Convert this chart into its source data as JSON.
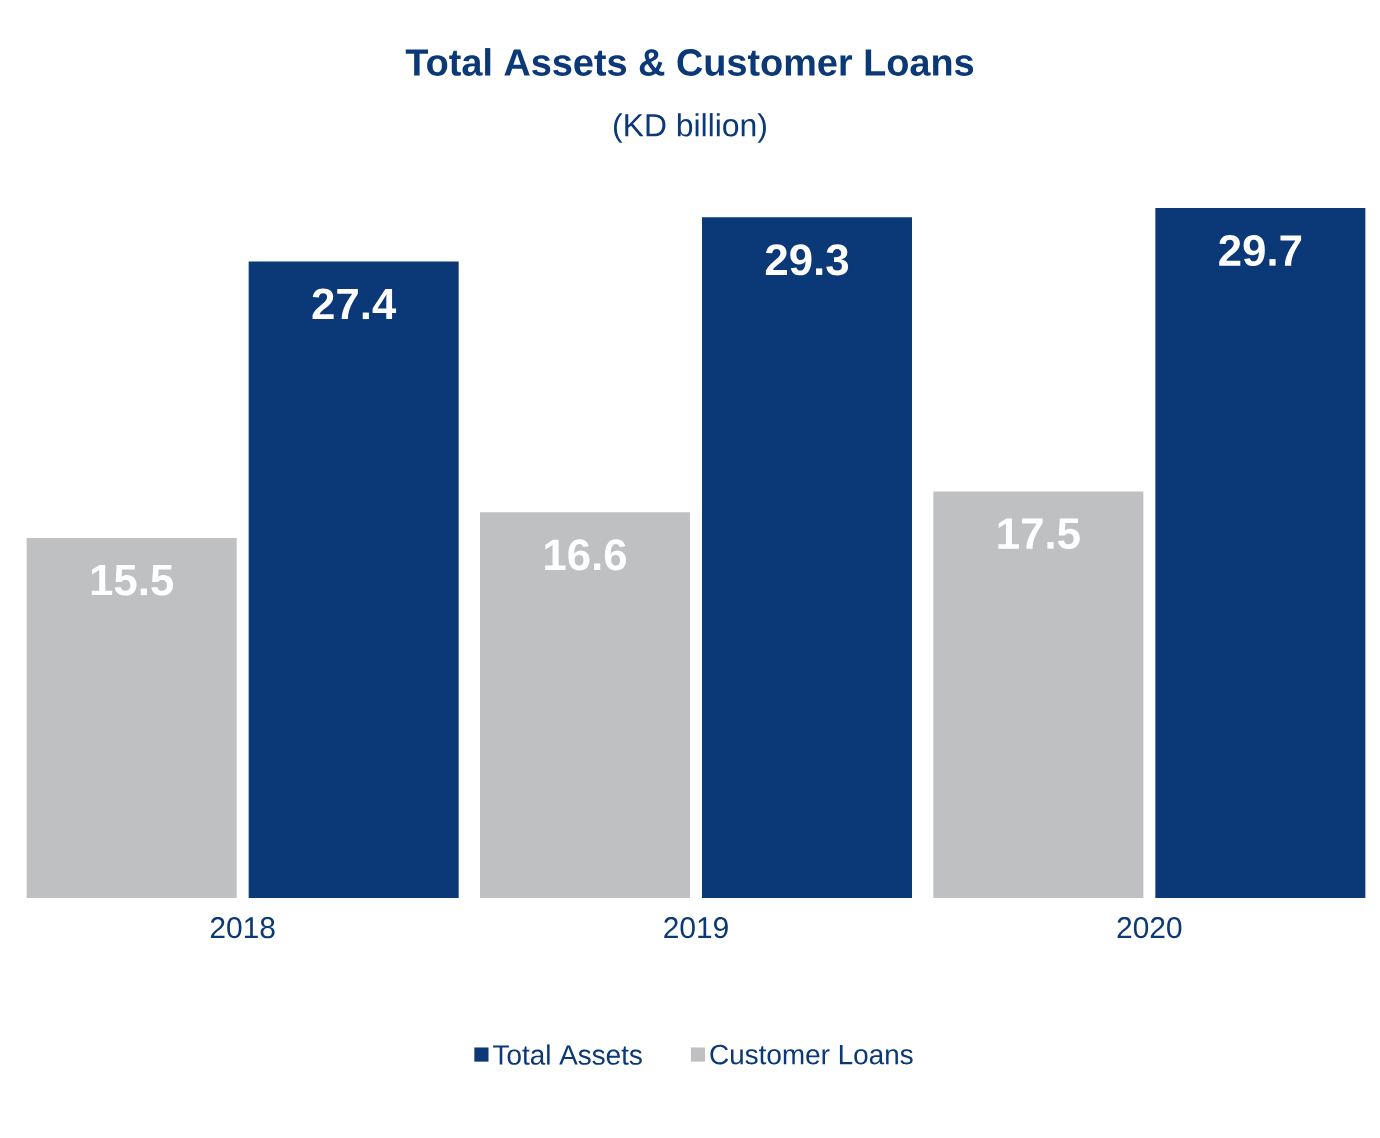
{
  "chart_data": {
    "type": "bar",
    "title": "Total Assets & Customer Loans",
    "subtitle": "(KD billion)",
    "categories": [
      "2018",
      "2019",
      "2020"
    ],
    "series": [
      {
        "name": "Customer Loans",
        "color": "#bfc0c2",
        "values": [
          15.5,
          16.6,
          17.5
        ]
      },
      {
        "name": "Total Assets",
        "color": "#0b3876",
        "values": [
          27.4,
          29.3,
          29.7
        ]
      }
    ],
    "data_labels": true,
    "legend": "bottom"
  }
}
